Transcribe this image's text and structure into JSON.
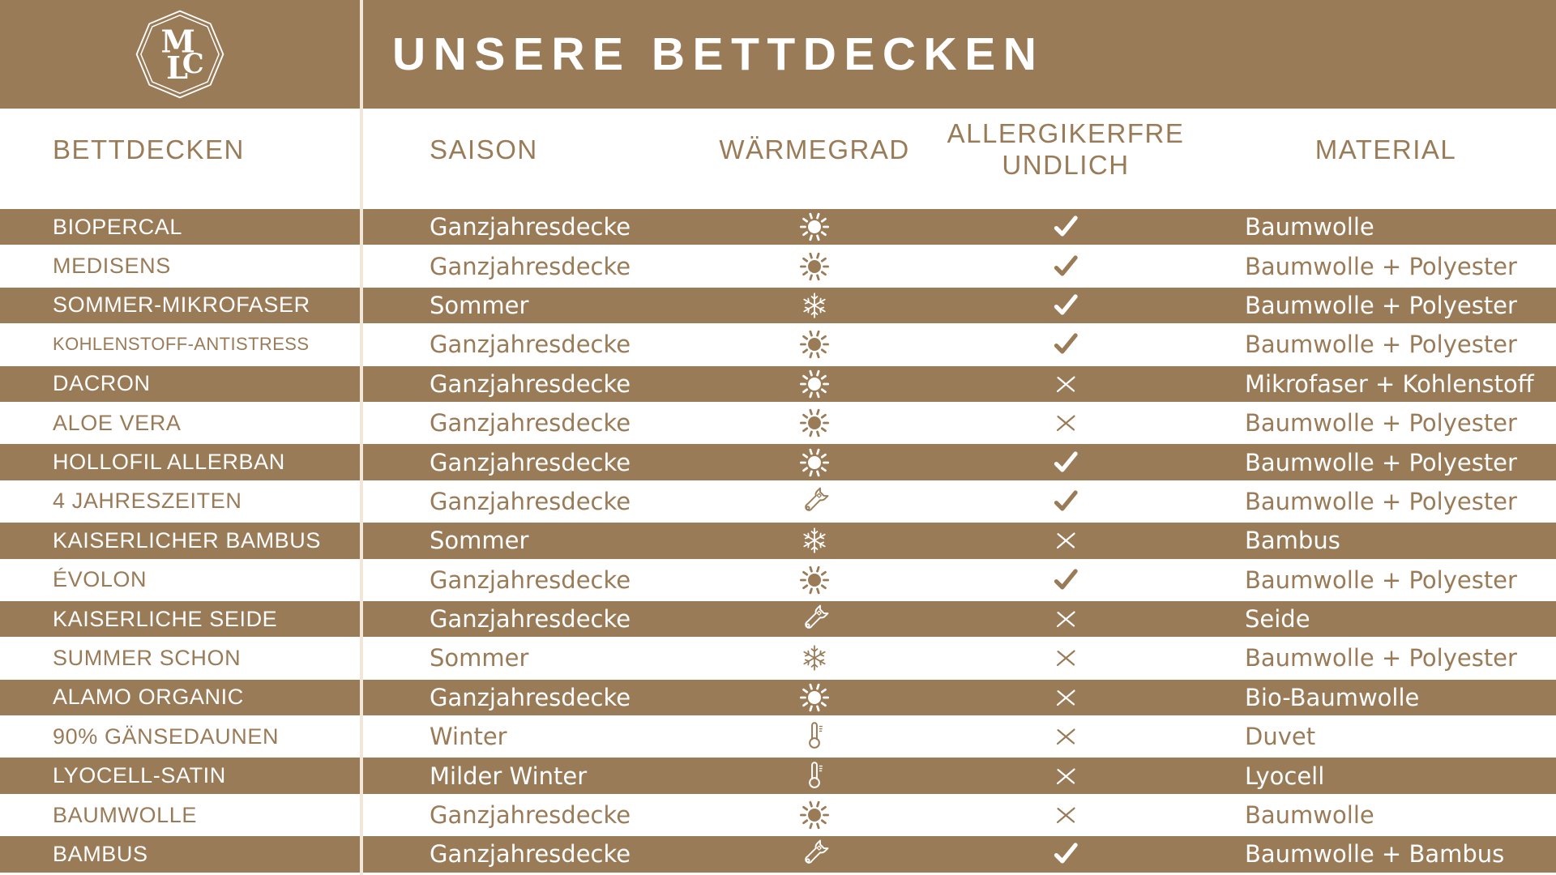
{
  "title": "UNSERE BETTDECKEN",
  "logo": {
    "monogram": "MLC",
    "m": "M",
    "l": "L",
    "c": "C"
  },
  "colors": {
    "brown": "#9A7B58",
    "cream_line": "#F1E7D8",
    "white": "#FFFFFF"
  },
  "columns": {
    "bettdecken": "BETTDECKEN",
    "saison": "SAISON",
    "waermegrad": "WÄRMEGRAD",
    "allergikerfreundlich": {
      "full": "ALLERGIKERFREUNDLICH",
      "line1": "ALLERGIKERFRE",
      "line2": "UNDLICH"
    },
    "material": "MATERIAL"
  },
  "icon_names": [
    "sun-icon",
    "snowflake-icon",
    "wrench-icon",
    "thermometer-icon",
    "check-icon",
    "cross-icon"
  ],
  "rows": [
    {
      "name": "BIOPERCAL",
      "saison": "Ganzjahresdecke",
      "waermegrad_icon": "sun-icon",
      "allergikerfreundlich": true,
      "material": "Baumwolle"
    },
    {
      "name": "MEDISENS",
      "saison": "Ganzjahresdecke",
      "waermegrad_icon": "sun-icon",
      "allergikerfreundlich": true,
      "material": "Baumwolle + Polyester"
    },
    {
      "name": "SOMMER-MIKROFASER",
      "saison": "Sommer",
      "waermegrad_icon": "snowflake-icon",
      "allergikerfreundlich": true,
      "material": "Baumwolle + Polyester"
    },
    {
      "name": "KOHLENSTOFF-ANTISTRESS",
      "saison": "Ganzjahresdecke",
      "waermegrad_icon": "sun-icon",
      "allergikerfreundlich": true,
      "material": "Baumwolle + Polyester",
      "name_small": true
    },
    {
      "name": "DACRON",
      "saison": "Ganzjahresdecke",
      "waermegrad_icon": "sun-icon",
      "allergikerfreundlich": false,
      "material": "Mikrofaser + Kohlenstoff"
    },
    {
      "name": "ALOE VERA",
      "saison": "Ganzjahresdecke",
      "waermegrad_icon": "sun-icon",
      "allergikerfreundlich": false,
      "material": "Baumwolle + Polyester"
    },
    {
      "name": "HOLLOFIL ALLERBAN",
      "saison": "Ganzjahresdecke",
      "waermegrad_icon": "sun-icon",
      "allergikerfreundlich": true,
      "material": "Baumwolle + Polyester"
    },
    {
      "name": "4 JAHRESZEITEN",
      "saison": "Ganzjahresdecke",
      "waermegrad_icon": "wrench-icon",
      "allergikerfreundlich": true,
      "material": "Baumwolle + Polyester"
    },
    {
      "name": "KAISERLICHER BAMBUS",
      "saison": "Sommer",
      "waermegrad_icon": "snowflake-icon",
      "allergikerfreundlich": false,
      "material": "Bambus"
    },
    {
      "name": "ÉVOLON",
      "saison": "Ganzjahresdecke",
      "waermegrad_icon": "sun-icon",
      "allergikerfreundlich": true,
      "material": "Baumwolle + Polyester"
    },
    {
      "name": "KAISERLICHE SEIDE",
      "saison": "Ganzjahresdecke",
      "waermegrad_icon": "wrench-icon",
      "allergikerfreundlich": false,
      "material": "Seide"
    },
    {
      "name": "SUMMER SCHON",
      "saison": "Sommer",
      "waermegrad_icon": "snowflake-icon",
      "allergikerfreundlich": false,
      "material": "Baumwolle + Polyester"
    },
    {
      "name": "ALAMO ORGANIC",
      "saison": "Ganzjahresdecke",
      "waermegrad_icon": "sun-icon",
      "allergikerfreundlich": false,
      "material": "Bio-Baumwolle"
    },
    {
      "name": "90% GÄNSEDAUNEN",
      "saison": "Winter",
      "waermegrad_icon": "thermometer-icon",
      "allergikerfreundlich": false,
      "material": "Duvet"
    },
    {
      "name": "LYOCELL-SATIN",
      "saison": "Milder Winter",
      "waermegrad_icon": "thermometer-icon",
      "allergikerfreundlich": false,
      "material": "Lyocell"
    },
    {
      "name": "BAUMWOLLE",
      "saison": "Ganzjahresdecke",
      "waermegrad_icon": "sun-icon",
      "allergikerfreundlich": false,
      "material": "Baumwolle"
    },
    {
      "name": "BAMBUS",
      "saison": "Ganzjahresdecke",
      "waermegrad_icon": "wrench-icon",
      "allergikerfreundlich": true,
      "material": "Baumwolle + Bambus"
    }
  ]
}
